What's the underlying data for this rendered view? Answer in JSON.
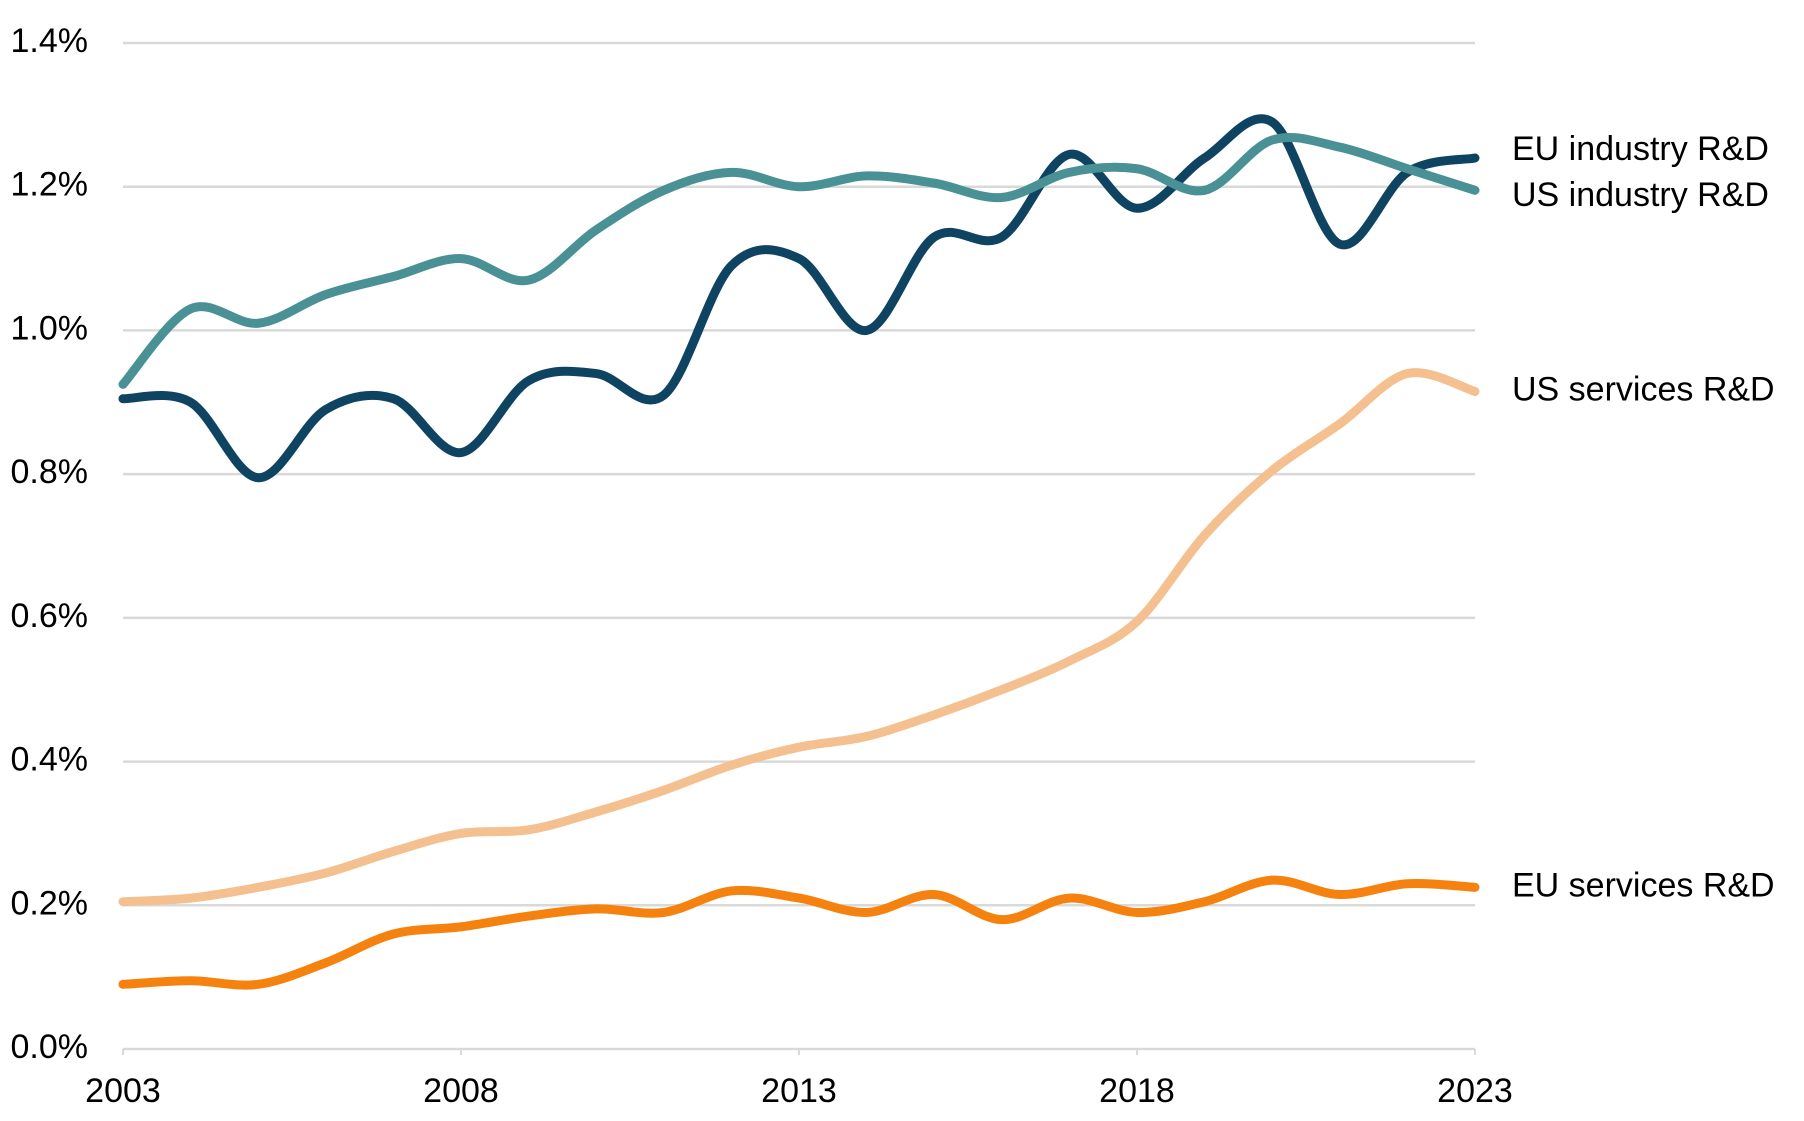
{
  "chart_data": {
    "type": "line",
    "x": [
      2003,
      2004,
      2005,
      2006,
      2007,
      2008,
      2009,
      2010,
      2011,
      2012,
      2013,
      2014,
      2015,
      2016,
      2017,
      2018,
      2019,
      2020,
      2021,
      2022,
      2023
    ],
    "xlim": [
      2003,
      2023
    ],
    "xticks": [
      2003,
      2008,
      2013,
      2018,
      2023
    ],
    "ylim": [
      0,
      1.4
    ],
    "yticks": [
      {
        "value": 0,
        "label": "0.0%"
      },
      {
        "value": 0.2,
        "label": "0.2%"
      },
      {
        "value": 0.4,
        "label": "0.4%"
      },
      {
        "value": 0.6,
        "label": "0.6%"
      },
      {
        "value": 0.8,
        "label": "0.8%"
      },
      {
        "value": 1.0,
        "label": "1.0%"
      },
      {
        "value": 1.2,
        "label": "1.2%"
      },
      {
        "value": 1.4,
        "label": "1.4%"
      }
    ],
    "grid": true,
    "series": [
      {
        "name": "EU industry R&D",
        "color": "#0e4461",
        "values": [
          0.905,
          0.9,
          0.795,
          0.89,
          0.905,
          0.83,
          0.93,
          0.94,
          0.91,
          1.09,
          1.1,
          1.0,
          1.13,
          1.13,
          1.245,
          1.17,
          1.24,
          1.29,
          1.12,
          1.22,
          1.24
        ]
      },
      {
        "name": "US industry R&D",
        "color": "#4a9196",
        "values": [
          0.925,
          1.03,
          1.01,
          1.05,
          1.075,
          1.1,
          1.07,
          1.14,
          1.195,
          1.22,
          1.2,
          1.215,
          1.205,
          1.185,
          1.22,
          1.225,
          1.195,
          1.265,
          1.255,
          1.225,
          1.195
        ]
      },
      {
        "name": "US services R&D",
        "color": "#f4c08f",
        "values": [
          0.205,
          0.21,
          0.225,
          0.245,
          0.275,
          0.3,
          0.305,
          0.33,
          0.36,
          0.395,
          0.42,
          0.435,
          0.465,
          0.5,
          0.54,
          0.595,
          0.715,
          0.805,
          0.87,
          0.94,
          0.915
        ]
      },
      {
        "name": "EU services R&D",
        "color": "#f5820f",
        "values": [
          0.09,
          0.095,
          0.09,
          0.12,
          0.16,
          0.17,
          0.185,
          0.195,
          0.19,
          0.22,
          0.21,
          0.19,
          0.215,
          0.18,
          0.21,
          0.19,
          0.205,
          0.235,
          0.215,
          0.23,
          0.225
        ]
      }
    ]
  }
}
